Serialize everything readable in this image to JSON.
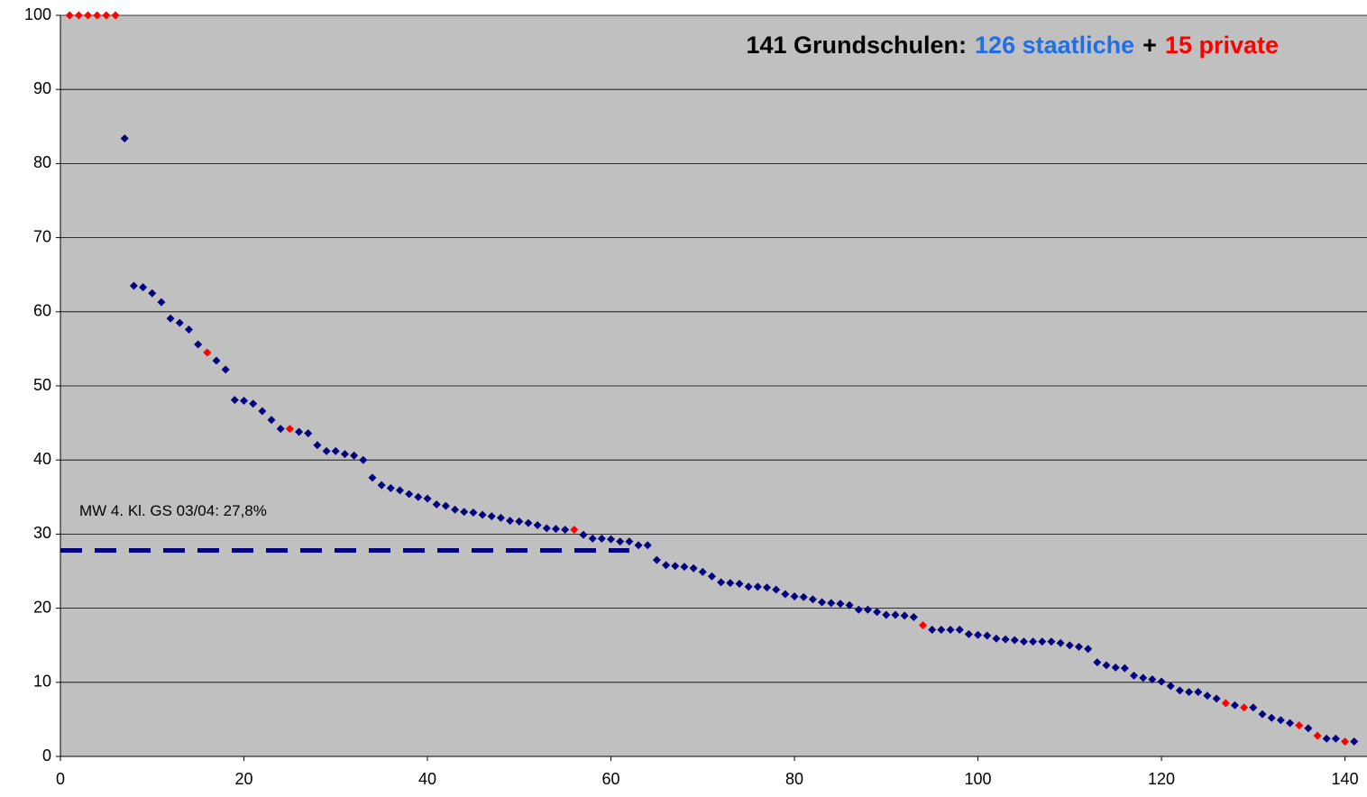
{
  "chart_data": {
    "type": "scatter",
    "title_parts": [
      {
        "text": "141 Grundschulen:",
        "color": "#000000"
      },
      {
        "text": "126 staatliche",
        "color": "#1f6fe8"
      },
      {
        "text": "+",
        "color": "#000000"
      },
      {
        "text": "15 private",
        "color": "#ff0000"
      }
    ],
    "xlim": [
      0,
      142.4
    ],
    "ylim": [
      0,
      100
    ],
    "xticks": [
      0,
      20,
      40,
      60,
      80,
      100,
      120,
      140
    ],
    "yticks": [
      0,
      10,
      20,
      30,
      40,
      50,
      60,
      70,
      80,
      90,
      100
    ],
    "grid": true,
    "background": "#c0c0c0",
    "mean_line": {
      "label": "MW 4. Kl. GS 03/04: 27,8%",
      "y": 27.8,
      "x": [
        0,
        62
      ],
      "color": "#000080"
    },
    "series": [
      {
        "color": "#000080",
        "x": [
          7,
          8,
          9,
          10,
          11,
          12,
          13,
          14,
          15,
          17,
          18,
          19,
          20,
          21,
          22,
          23,
          24,
          26,
          27,
          28,
          29,
          30,
          31,
          32,
          33,
          34,
          35,
          36,
          37,
          38,
          39,
          40,
          41,
          42,
          43,
          44,
          45,
          46,
          47,
          48,
          49,
          50,
          51,
          52,
          53,
          54,
          55,
          57,
          58,
          59,
          60,
          61,
          62,
          63,
          64,
          65,
          66,
          67,
          68,
          69,
          70,
          71,
          72,
          73,
          74,
          75,
          76,
          77,
          78,
          79,
          80,
          81,
          82,
          83,
          84,
          85,
          86,
          87,
          88,
          89,
          90,
          91,
          92,
          93,
          95,
          96,
          97,
          98,
          99,
          100,
          101,
          102,
          103,
          104,
          105,
          106,
          107,
          108,
          109,
          110,
          111,
          112,
          113,
          114,
          115,
          116,
          117,
          118,
          119,
          120,
          121,
          122,
          123,
          124,
          125,
          126,
          128,
          130,
          131,
          132,
          133,
          134,
          136,
          138,
          139,
          141
        ],
        "values": [
          83.4,
          63.5,
          63.3,
          62.5,
          61.3,
          59.1,
          58.5,
          57.6,
          55.6,
          53.4,
          52.2,
          48.1,
          48.0,
          47.6,
          46.6,
          45.4,
          44.2,
          43.8,
          43.6,
          42.0,
          41.2,
          41.2,
          40.8,
          40.6,
          40.0,
          37.6,
          36.6,
          36.2,
          35.9,
          35.4,
          35.0,
          34.8,
          34.0,
          33.8,
          33.3,
          33.0,
          32.9,
          32.6,
          32.4,
          32.2,
          31.8,
          31.7,
          31.5,
          31.2,
          30.8,
          30.7,
          30.6,
          29.9,
          29.4,
          29.4,
          29.3,
          29.0,
          29.0,
          28.5,
          28.5,
          26.5,
          25.8,
          25.7,
          25.6,
          25.4,
          24.9,
          24.3,
          23.5,
          23.4,
          23.3,
          22.9,
          22.9,
          22.8,
          22.5,
          21.9,
          21.6,
          21.5,
          21.2,
          20.8,
          20.7,
          20.6,
          20.4,
          19.8,
          19.8,
          19.5,
          19.1,
          19.1,
          19.0,
          18.8,
          17.1,
          17.1,
          17.1,
          17.1,
          16.5,
          16.4,
          16.3,
          15.9,
          15.8,
          15.7,
          15.5,
          15.5,
          15.5,
          15.5,
          15.3,
          15.0,
          14.8,
          14.5,
          12.7,
          12.3,
          12.0,
          11.9,
          10.9,
          10.6,
          10.4,
          10.1,
          9.5,
          8.9,
          8.7,
          8.7,
          8.2,
          7.8,
          6.9,
          6.6,
          5.7,
          5.2,
          4.9,
          4.5,
          3.8,
          2.4,
          2.4,
          2.0
        ]
      },
      {
        "color": "#ff0000",
        "x": [
          1,
          2,
          3,
          4,
          5,
          6,
          16,
          25,
          56,
          94,
          127,
          129,
          135,
          137,
          140
        ],
        "values": [
          100,
          100,
          100,
          100,
          100,
          100,
          54.5,
          44.2,
          30.6,
          17.7,
          7.2,
          6.6,
          4.2,
          2.8,
          2.0
        ]
      }
    ]
  }
}
